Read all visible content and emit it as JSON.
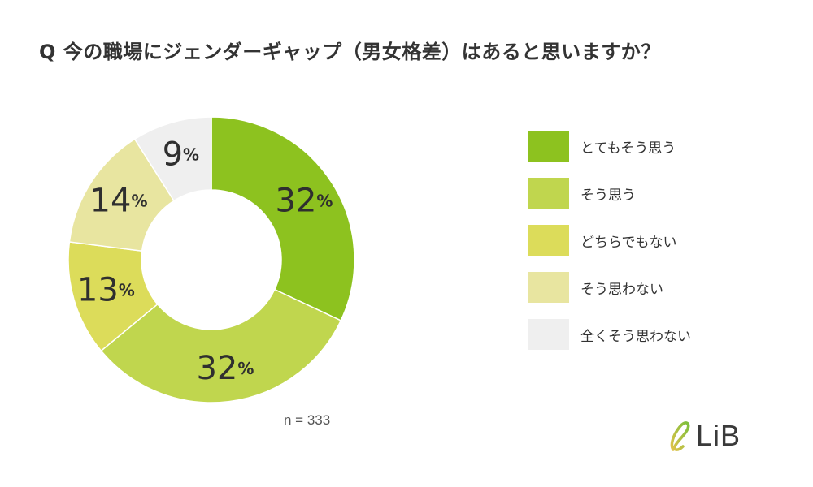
{
  "title": "Q 今の職場にジェンダーギャップ（男女格差）はあると思いますか？",
  "sample_size": "n = 333",
  "logo_text": "LiB",
  "colors": {
    "background": "#ffffff",
    "text": "#333333"
  },
  "chart_data": {
    "type": "pie",
    "donut": true,
    "title": "Q 今の職場にジェンダーギャップ（男女格差）はあると思いますか？",
    "categories": [
      "とてもそう思う",
      "そう思う",
      "どちらでもない",
      "そう思わない",
      "全くそう思わない"
    ],
    "values": [
      32,
      32,
      13,
      14,
      9
    ],
    "unit": "%",
    "value_labels": [
      "32",
      "32",
      "13",
      "14",
      "9"
    ],
    "colors": [
      "#8dc21f",
      "#c0d64e",
      "#dcdc5a",
      "#e8e5a0",
      "#efefef"
    ],
    "legend_position": "right",
    "start_angle_deg": 0,
    "direction": "clockwise"
  }
}
